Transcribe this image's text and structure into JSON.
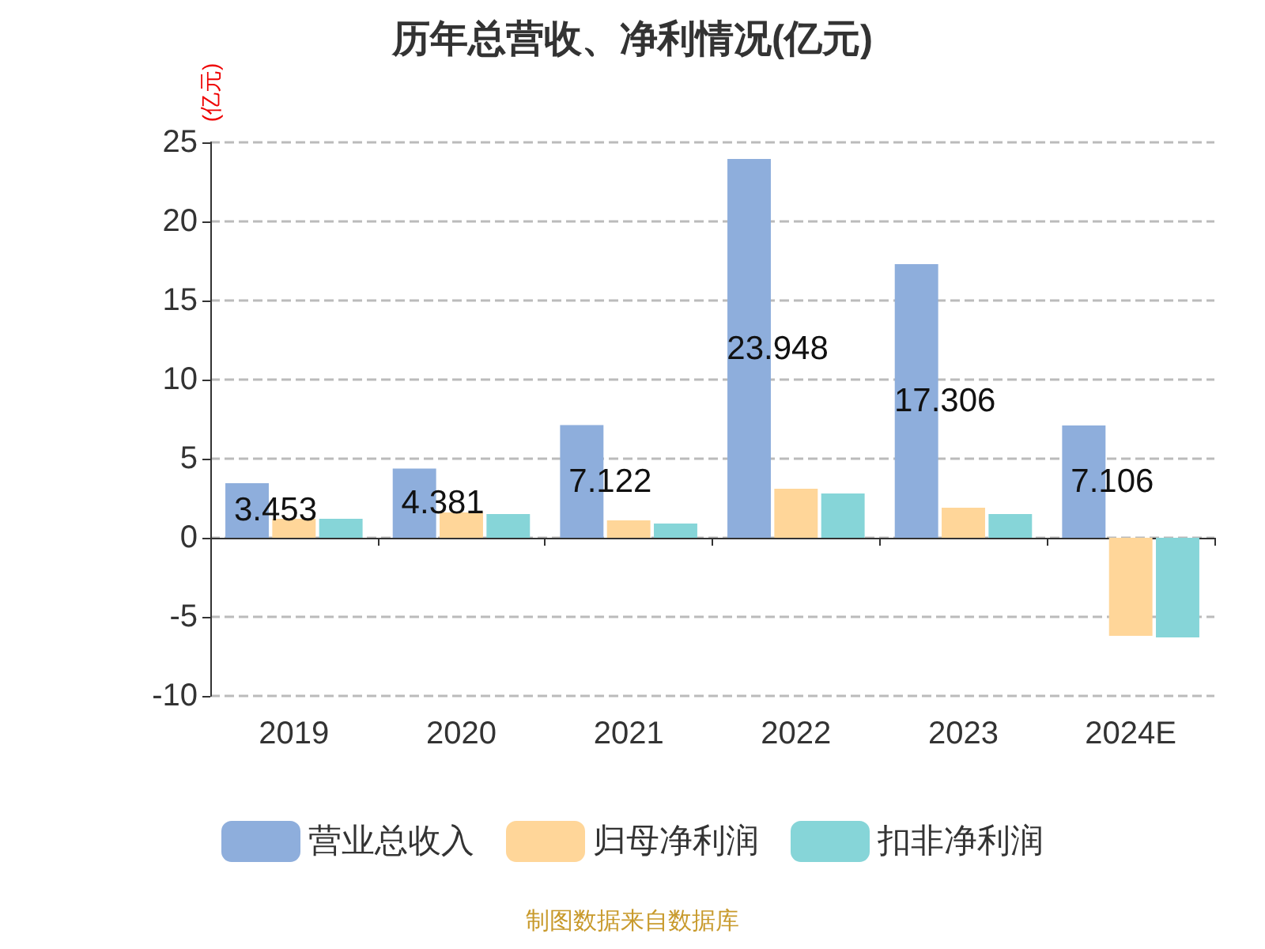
{
  "chart_data": {
    "type": "bar",
    "title": "历年总营收、净利情况(亿元)",
    "ylabel": "(亿元)",
    "categories": [
      "2019",
      "2020",
      "2021",
      "2022",
      "2023",
      "2024E"
    ],
    "series": [
      {
        "name": "营业总收入",
        "color": "#8eaedc",
        "values": [
          3.453,
          4.381,
          7.122,
          23.948,
          17.306,
          7.106
        ],
        "value_labels": [
          "3.453",
          "4.381",
          "7.122",
          "23.948",
          "17.306",
          "7.106"
        ]
      },
      {
        "name": "归母净利润",
        "color": "#ffd699",
        "values": [
          1.2,
          1.6,
          1.1,
          3.1,
          1.9,
          -6.2
        ]
      },
      {
        "name": "扣非净利润",
        "color": "#86d5d8",
        "values": [
          1.2,
          1.5,
          0.9,
          2.8,
          1.5,
          -6.3
        ]
      }
    ],
    "ylim": [
      -10,
      25
    ],
    "yticks": [
      -10,
      -5,
      0,
      5,
      10,
      15,
      20,
      25
    ],
    "grid": "y",
    "legend": "bottom",
    "annotations": [
      "制图数据来自数据库"
    ]
  }
}
